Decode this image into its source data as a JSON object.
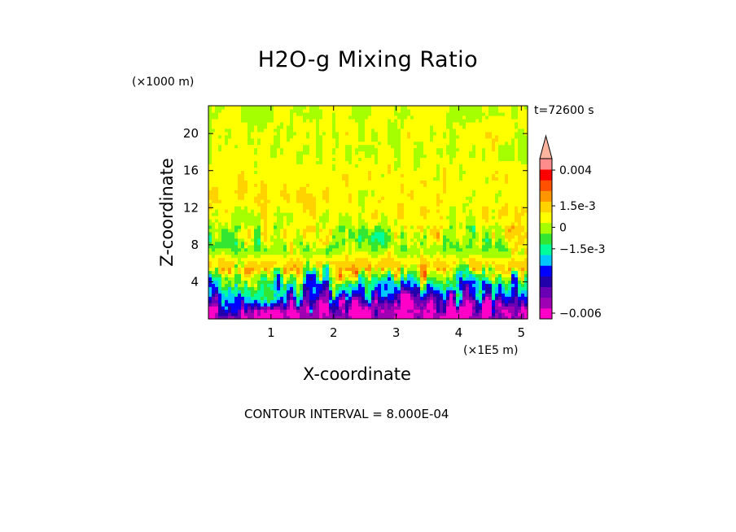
{
  "chart_data": {
    "type": "heatmap",
    "title": "H2O-g Mixing Ratio",
    "xlabel": "X-coordinate",
    "ylabel": "Z-coordinate",
    "x_unit": "(×1E5 m)",
    "y_unit": "(×1000 m)",
    "time_label": "t=72600 s",
    "contour_note": "CONTOUR INTERVAL = 8.000E-04",
    "xlim": [
      0,
      5.1
    ],
    "ylim": [
      0,
      23
    ],
    "x_ticks": [
      1,
      2,
      3,
      4,
      5
    ],
    "x_tick_labels": [
      "1",
      "2",
      "3",
      "4",
      "5"
    ],
    "y_ticks": [
      4,
      8,
      12,
      16,
      20
    ],
    "y_tick_labels": [
      "4",
      "8",
      "12",
      "16",
      "20"
    ],
    "colorbar": {
      "labels": [
        {
          "text": "0.004",
          "value": 0.004
        },
        {
          "text": "1.5e-3",
          "value": 0.0015
        },
        {
          "text": "0",
          "value": 0
        },
        {
          "text": "−1.5e-3",
          "value": -0.0015
        },
        {
          "text": "−0.006",
          "value": -0.006
        }
      ],
      "colors": [
        "#ff00c8",
        "#a000b4",
        "#6a00b4",
        "#2200aa",
        "#0000ff",
        "#00c8ff",
        "#00ff9a",
        "#32e632",
        "#a6ff00",
        "#ffff00",
        "#ffd200",
        "#ff9600",
        "#ff5000",
        "#ff0000",
        "#ff8c8c"
      ],
      "over_color": "#ffb4a0"
    },
    "vertical_profile": [
      {
        "z": 0.8,
        "value": -0.0056
      },
      {
        "z": 2.5,
        "value": -0.0032
      },
      {
        "z": 4.2,
        "value": -0.0012
      },
      {
        "z": 5.8,
        "value": 0.0014
      },
      {
        "z": 7.5,
        "value": -0.0003
      },
      {
        "z": 9.5,
        "value": 0.0003
      },
      {
        "z": 12.0,
        "value": 0.0008
      },
      {
        "z": 15.0,
        "value": 0.0008
      },
      {
        "z": 18.0,
        "value": 0.0004
      },
      {
        "z": 20.5,
        "value": 0.0006
      },
      {
        "z": 22.0,
        "value": 0.0003
      }
    ]
  }
}
